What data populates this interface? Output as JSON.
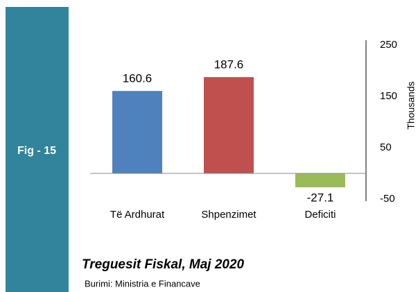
{
  "chart_data": {
    "type": "bar",
    "figure_label": "Fig - 15",
    "title": "Treguesit Fiskal, Maj 2020",
    "source": "Burimi: Ministria e Financave",
    "y_axis_label": "Thousands",
    "categories": [
      "Të Ardhurat",
      "Shpenzimet",
      "Deficiti"
    ],
    "values": [
      160.6,
      187.6,
      -27.1
    ],
    "colors": [
      "#4f81bd",
      "#c0504d",
      "#9bbb59"
    ],
    "ylim": [
      -50,
      250
    ],
    "yticks": [
      -50,
      50,
      150,
      250
    ],
    "y_axis_side": "right",
    "grid": false
  }
}
